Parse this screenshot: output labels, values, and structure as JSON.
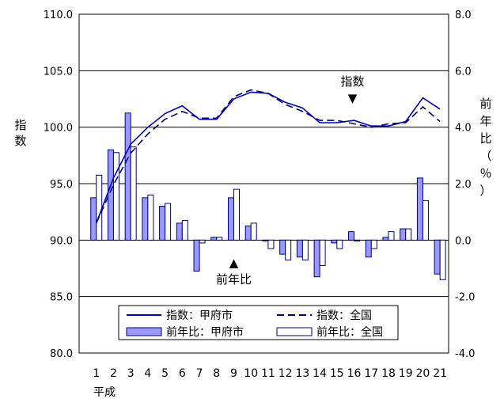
{
  "chart_data": {
    "type": "bar",
    "categories": [
      "1",
      "2",
      "3",
      "4",
      "5",
      "6",
      "7",
      "8",
      "9",
      "10",
      "11",
      "12",
      "13",
      "14",
      "15",
      "16",
      "17",
      "18",
      "19",
      "20",
      "21"
    ],
    "x_era_label": "平成",
    "y_left": {
      "label": "指数",
      "ylim": [
        80,
        110
      ],
      "ticks": [
        "80.0",
        "85.0",
        "90.0",
        "95.0",
        "100.0",
        "105.0",
        "110.0"
      ]
    },
    "y_right": {
      "label": "前年比（％）",
      "ylim": [
        -4,
        8
      ],
      "ticks": [
        "-4.0",
        "-2.0",
        "0.0",
        "2.0",
        "4.0",
        "6.0",
        "8.0"
      ]
    },
    "series": [
      {
        "name": "指数：甲府市",
        "kind": "line",
        "axis": "left",
        "style": "solid",
        "color": "#0000cc",
        "values": [
          91.5,
          95.5,
          98.5,
          100,
          101.2,
          101.9,
          100.7,
          100.7,
          102.5,
          103.1,
          103,
          102.2,
          101.7,
          100.4,
          100.4,
          100.6,
          100.1,
          100.1,
          100.5,
          102.6,
          101.6
        ]
      },
      {
        "name": "指数：全国",
        "kind": "line",
        "axis": "left",
        "style": "dashed",
        "color": "#000080",
        "values": [
          91.5,
          94.9,
          97.7,
          99.4,
          100.7,
          101.4,
          100.8,
          100.8,
          102.7,
          103.3,
          103,
          102,
          101.4,
          100.6,
          100.6,
          100.3,
          100,
          100.3,
          100.4,
          101.8,
          100.5
        ]
      },
      {
        "name": "前年比：甲府市",
        "kind": "bar",
        "axis": "right",
        "fill": "#9999ff",
        "values": [
          1.5,
          3.2,
          4.5,
          1.5,
          1.2,
          0.6,
          -1.1,
          0.1,
          1.5,
          0.5,
          0,
          -0.5,
          -0.6,
          -1.3,
          -0.1,
          0.3,
          -0.6,
          0.1,
          0.4,
          2.2,
          -1.2
        ]
      },
      {
        "name": "前年比：全国",
        "kind": "bar",
        "axis": "right",
        "fill": "#ffffff",
        "values": [
          2.3,
          3.1,
          3.3,
          1.6,
          1.3,
          0.7,
          -0.1,
          0.1,
          1.8,
          0.6,
          -0.3,
          -0.7,
          -0.7,
          -0.9,
          -0.3,
          0,
          -0.3,
          0.3,
          0.4,
          1.4,
          -1.4
        ]
      }
    ],
    "annotations": [
      {
        "text": "指数",
        "marker": "▼",
        "at_category": "16"
      },
      {
        "text": "前年比",
        "marker": "▲",
        "at_category": "9"
      }
    ],
    "legend_position": "bottom-center"
  }
}
